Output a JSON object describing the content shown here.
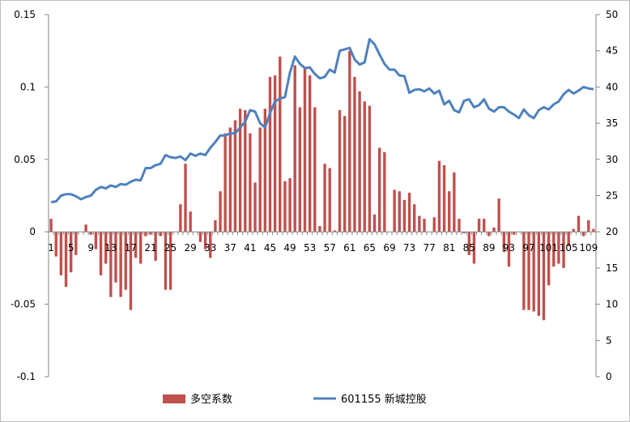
{
  "chart_data": {
    "type": "bar+line",
    "x": [
      1,
      2,
      3,
      4,
      5,
      6,
      7,
      8,
      9,
      10,
      11,
      12,
      13,
      14,
      15,
      16,
      17,
      18,
      19,
      20,
      21,
      22,
      23,
      24,
      25,
      26,
      27,
      28,
      29,
      30,
      31,
      32,
      33,
      34,
      35,
      36,
      37,
      38,
      39,
      40,
      41,
      42,
      43,
      44,
      45,
      46,
      47,
      48,
      49,
      50,
      51,
      52,
      53,
      54,
      55,
      56,
      57,
      58,
      59,
      60,
      61,
      62,
      63,
      64,
      65,
      66,
      67,
      68,
      69,
      70,
      71,
      72,
      73,
      74,
      75,
      76,
      77,
      78,
      79,
      80,
      81,
      82,
      83,
      84,
      85,
      86,
      87,
      88,
      89,
      90,
      91,
      92,
      93,
      94,
      95,
      96,
      97,
      98,
      99,
      100,
      101,
      102,
      103,
      104,
      105,
      106,
      107,
      108,
      109,
      110
    ],
    "x_tick_labels": [
      "1",
      "5",
      "9",
      "13",
      "17",
      "21",
      "25",
      "29",
      "33",
      "37",
      "41",
      "45",
      "49",
      "53",
      "57",
      "61",
      "65",
      "69",
      "73",
      "77",
      "81",
      "85",
      "89",
      "93",
      "97",
      "101",
      "105",
      "109"
    ],
    "y_left": {
      "ticks": [
        "-0.1",
        "-0.05",
        "0",
        "0.05",
        "0.1",
        "0.15"
      ],
      "min": -0.1,
      "max": 0.15
    },
    "y_right": {
      "ticks": [
        "0",
        "5",
        "10",
        "15",
        "20",
        "25",
        "30",
        "35",
        "40",
        "45",
        "50"
      ],
      "min": 0,
      "max": 50
    },
    "series": [
      {
        "name": "多空系数",
        "kind": "bar",
        "axis": "left",
        "color": "#c0504d",
        "values": [
          0.009,
          -0.017,
          -0.03,
          -0.038,
          -0.028,
          -0.016,
          0.0,
          0.005,
          -0.002,
          -0.012,
          -0.03,
          -0.022,
          -0.045,
          -0.035,
          -0.045,
          -0.04,
          -0.054,
          -0.018,
          -0.022,
          -0.003,
          -0.002,
          -0.02,
          -0.003,
          -0.04,
          -0.04,
          0.0,
          0.019,
          0.047,
          0.014,
          0.0,
          -0.007,
          -0.012,
          -0.018,
          0.008,
          0.028,
          0.068,
          0.072,
          0.077,
          0.085,
          0.084,
          0.068,
          0.034,
          0.072,
          0.085,
          0.107,
          0.108,
          0.121,
          0.035,
          0.037,
          0.115,
          0.086,
          0.114,
          0.108,
          0.086,
          0.004,
          0.047,
          0.044,
          0.001,
          0.084,
          0.08,
          0.125,
          0.107,
          0.097,
          0.09,
          0.087,
          0.012,
          0.058,
          0.055,
          0.0,
          0.029,
          0.028,
          0.022,
          0.027,
          0.019,
          0.011,
          0.009,
          0.0,
          0.01,
          0.049,
          0.046,
          0.028,
          0.041,
          0.009,
          -0.001,
          -0.016,
          -0.022,
          0.009,
          0.009,
          -0.003,
          0.003,
          0.023,
          -0.014,
          -0.024,
          -0.002,
          0.0,
          -0.054,
          -0.054,
          -0.055,
          -0.058,
          -0.061,
          -0.037,
          -0.024,
          -0.022,
          -0.025,
          -0.01,
          0.002,
          0.011,
          -0.003,
          0.008,
          0.002
        ]
      },
      {
        "name": "601155 新城控股",
        "kind": "line",
        "axis": "right",
        "color": "#4f81bd",
        "values": [
          24.1,
          24.2,
          25.0,
          25.2,
          25.2,
          24.9,
          24.5,
          24.8,
          25.0,
          25.8,
          26.2,
          26.0,
          26.4,
          26.2,
          26.6,
          26.5,
          26.9,
          27.2,
          27.1,
          28.8,
          28.8,
          29.2,
          29.4,
          30.6,
          30.3,
          30.2,
          30.4,
          29.9,
          30.8,
          30.5,
          30.8,
          30.6,
          31.6,
          32.4,
          33.3,
          33.3,
          33.6,
          33.6,
          34.4,
          35.2,
          36.8,
          36.6,
          35.0,
          34.4,
          36.4,
          38.0,
          38.4,
          38.6,
          42.0,
          44.2,
          43.2,
          42.6,
          42.7,
          41.8,
          41.2,
          41.4,
          42.4,
          42.0,
          45.0,
          45.2,
          45.4,
          43.8,
          43.1,
          43.4,
          46.6,
          45.9,
          44.5,
          43.2,
          42.4,
          42.4,
          41.6,
          41.5,
          39.2,
          39.6,
          39.7,
          39.4,
          39.8,
          39.1,
          39.5,
          37.6,
          38.1,
          36.8,
          36.5,
          38.1,
          38.3,
          37.2,
          37.5,
          38.3,
          37.0,
          36.6,
          37.2,
          37.2,
          36.6,
          36.2,
          35.7,
          36.9,
          36.1,
          35.7,
          36.8,
          37.2,
          36.9,
          37.6,
          38.0,
          39.0,
          39.6,
          39.1,
          39.5,
          40.0,
          39.8,
          39.7
        ]
      }
    ],
    "grid": false,
    "legend": "bottom"
  }
}
